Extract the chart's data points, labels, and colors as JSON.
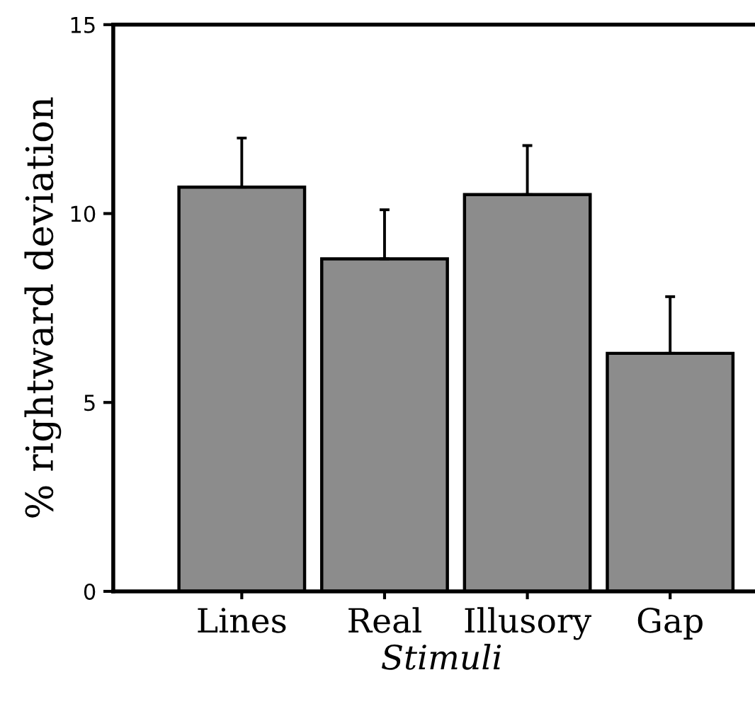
{
  "chart_data": {
    "type": "bar",
    "xlabel": "Stimuli",
    "ylabel": "% rightward deviation",
    "categories": [
      "Lines",
      "Real",
      "Illusory",
      "Gap"
    ],
    "values": [
      10.7,
      8.8,
      10.5,
      6.3
    ],
    "errors": [
      [
        10.7,
        12.0
      ],
      [
        8.8,
        10.1
      ],
      [
        10.5,
        11.8
      ],
      [
        6.3,
        7.8
      ]
    ],
    "color": "#8c8c8c",
    "ylim": [
      0,
      15
    ],
    "yticks": [
      0,
      5,
      10,
      15
    ],
    "grid": false
  }
}
